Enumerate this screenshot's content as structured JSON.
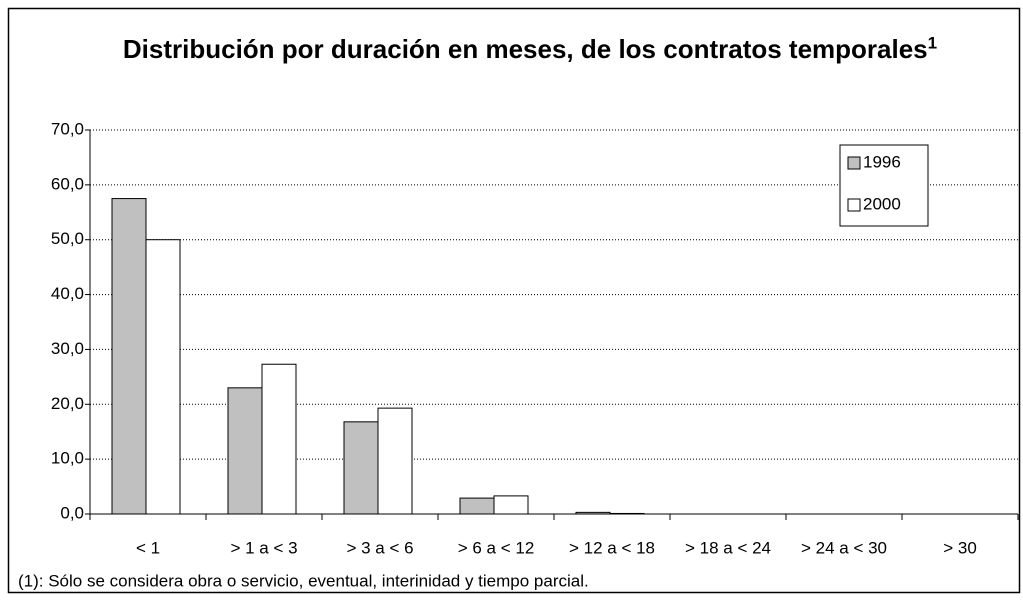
{
  "chart_data": {
    "type": "bar",
    "title": "Distribución por duración en meses, de los contratos temporales",
    "title_superscript": "1",
    "footnote": "(1): Sólo se considera obra o servicio, eventual, interinidad y tiempo parcial.",
    "categories": [
      "< 1",
      "> 1 a < 3",
      "> 3 a < 6",
      "> 6 a < 12",
      "> 12 a < 18",
      "> 18 a < 24",
      "> 24 a < 30",
      "> 30"
    ],
    "series": [
      {
        "name": "1996",
        "color": "#c0c0c0",
        "values": [
          57.5,
          23.0,
          16.8,
          2.9,
          0.3,
          0,
          0,
          0
        ]
      },
      {
        "name": "2000",
        "color": "#ffffff",
        "values": [
          50.0,
          27.3,
          19.3,
          3.3,
          0.1,
          0,
          0,
          0
        ]
      }
    ],
    "ylim": [
      0,
      70
    ],
    "yticks": [
      {
        "value": 0,
        "label": "0,0"
      },
      {
        "value": 10,
        "label": "10,0"
      },
      {
        "value": 20,
        "label": "20,0"
      },
      {
        "value": 30,
        "label": "30,0"
      },
      {
        "value": 40,
        "label": "40,0"
      },
      {
        "value": 50,
        "label": "50,0"
      },
      {
        "value": 60,
        "label": "60,0"
      },
      {
        "value": 70,
        "label": "70,0"
      }
    ],
    "grid": true,
    "legend": "top-right"
  }
}
